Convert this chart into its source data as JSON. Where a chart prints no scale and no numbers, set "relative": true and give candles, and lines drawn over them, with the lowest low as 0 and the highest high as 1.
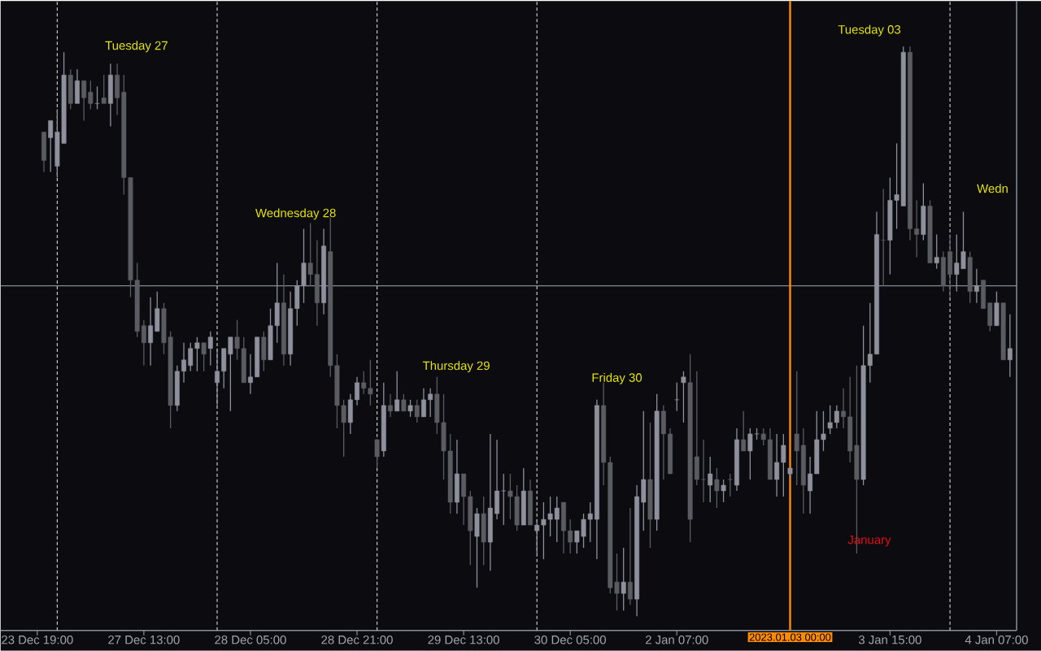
{
  "chart_data": {
    "type": "candlestick",
    "relative": true,
    "tick_labels": "x",
    "categories": [
      "23 Dec 19:00",
      null,
      null,
      null,
      null,
      null,
      null,
      null,
      null,
      null,
      null,
      null,
      null,
      null,
      null,
      null,
      "27 Dec 13:00",
      null,
      null,
      null,
      null,
      null,
      null,
      null,
      null,
      null,
      null,
      null,
      null,
      null,
      null,
      null,
      "28 Dec 05:00",
      null,
      null,
      null,
      null,
      null,
      null,
      null,
      null,
      null,
      null,
      null,
      null,
      null,
      null,
      null,
      "28 Dec 21:00",
      null,
      null,
      null,
      null,
      null,
      null,
      null,
      null,
      null,
      null,
      null,
      null,
      null,
      null,
      null,
      "29 Dec 13:00",
      null,
      null,
      null,
      null,
      null,
      null,
      null,
      null,
      null,
      null,
      null,
      null,
      null,
      null,
      null,
      "30 Dec 05:00",
      null,
      null,
      null,
      null,
      null,
      null,
      null,
      null,
      null,
      null,
      null,
      null,
      null,
      null,
      null,
      "2 Jan 07:00",
      null,
      null,
      null,
      null,
      null,
      null,
      null,
      null,
      null,
      null,
      null,
      null,
      null,
      null,
      null,
      null,
      null,
      null,
      null,
      null,
      null,
      null,
      null,
      null,
      null,
      null,
      null,
      null,
      null,
      null,
      null,
      "3 Jan 15:00",
      null,
      null,
      null,
      null,
      null,
      null,
      null,
      null,
      null,
      null,
      null,
      null,
      null,
      null,
      null,
      "4 Jan 07:00",
      null,
      null
    ],
    "ohlc": [
      null,
      [
        0.85,
        0.85,
        0.78,
        0.8
      ],
      [
        0.84,
        0.87,
        0.78,
        0.87
      ],
      [
        0.79,
        0.89,
        0.77,
        0.85
      ],
      [
        0.83,
        0.99,
        0.83,
        0.95
      ],
      [
        0.95,
        0.96,
        0.89,
        0.9
      ],
      [
        0.9,
        0.96,
        0.9,
        0.94
      ],
      [
        0.94,
        0.94,
        0.87,
        0.91
      ],
      [
        0.92,
        0.94,
        0.89,
        0.9
      ],
      [
        0.9,
        0.93,
        0.89,
        0.9
      ],
      [
        0.91,
        0.95,
        0.9,
        0.9
      ],
      [
        0.9,
        0.97,
        0.86,
        0.95
      ],
      [
        0.95,
        0.97,
        0.88,
        0.91
      ],
      [
        0.92,
        0.95,
        0.74,
        0.77
      ],
      [
        0.77,
        0.77,
        0.56,
        0.59
      ],
      [
        0.59,
        0.62,
        0.49,
        0.5
      ],
      [
        0.51,
        0.52,
        0.44,
        0.48
      ],
      [
        0.48,
        0.56,
        0.44,
        0.51
      ],
      [
        0.5,
        0.57,
        0.5,
        0.54
      ],
      [
        0.54,
        0.55,
        0.46,
        0.48
      ],
      [
        0.49,
        0.5,
        0.33,
        0.37
      ],
      [
        0.37,
        0.44,
        0.36,
        0.43
      ],
      [
        0.43,
        0.48,
        0.41,
        0.45
      ],
      [
        0.44,
        0.48,
        0.43,
        0.47
      ],
      [
        0.47,
        0.49,
        0.43,
        0.48
      ],
      [
        0.48,
        0.48,
        0.43,
        0.46
      ],
      [
        0.47,
        0.5,
        0.44,
        0.49
      ],
      [
        0.41,
        0.47,
        0.37,
        0.43
      ],
      [
        0.43,
        0.47,
        0.4,
        0.47
      ],
      [
        0.46,
        0.49,
        0.36,
        0.49
      ],
      [
        0.49,
        0.52,
        0.45,
        0.47
      ],
      [
        0.47,
        0.49,
        0.41,
        0.41
      ],
      [
        0.41,
        0.46,
        0.39,
        0.42
      ],
      [
        0.42,
        0.49,
        0.42,
        0.49
      ],
      [
        0.49,
        0.5,
        0.43,
        0.45
      ],
      [
        0.45,
        0.54,
        0.45,
        0.51
      ],
      [
        0.51,
        0.62,
        0.48,
        0.55
      ],
      [
        0.55,
        0.6,
        0.44,
        0.46
      ],
      [
        0.46,
        0.57,
        0.44,
        0.54
      ],
      [
        0.54,
        0.59,
        0.51,
        0.58
      ],
      [
        0.58,
        0.68,
        0.55,
        0.62
      ],
      [
        0.62,
        0.69,
        0.58,
        0.6
      ],
      [
        0.6,
        0.66,
        0.51,
        0.55
      ],
      [
        0.55,
        0.68,
        0.53,
        0.65
      ],
      [
        0.64,
        0.7,
        0.42,
        0.44
      ],
      [
        0.44,
        0.46,
        0.33,
        0.37
      ],
      [
        0.37,
        0.38,
        0.28,
        0.34
      ],
      [
        0.34,
        0.39,
        0.32,
        0.38
      ],
      [
        0.38,
        0.42,
        0.37,
        0.41
      ],
      [
        0.41,
        0.43,
        0.39,
        0.4
      ],
      [
        0.4,
        0.45,
        0.37,
        0.39
      ],
      [
        0.31,
        0.31,
        0.26,
        0.28
      ],
      [
        0.29,
        0.41,
        0.28,
        0.37
      ],
      [
        0.37,
        0.39,
        0.35,
        0.36
      ],
      [
        0.36,
        0.43,
        0.36,
        0.38
      ],
      [
        0.38,
        0.39,
        0.36,
        0.36
      ],
      [
        0.36,
        0.38,
        0.35,
        0.37
      ],
      [
        0.37,
        0.38,
        0.34,
        0.35
      ],
      [
        0.35,
        0.4,
        0.35,
        0.38
      ],
      [
        0.38,
        0.4,
        0.35,
        0.39
      ],
      [
        0.39,
        0.42,
        0.32,
        0.34
      ],
      [
        0.34,
        0.39,
        0.24,
        0.29
      ],
      [
        0.29,
        0.32,
        0.18,
        0.2
      ],
      [
        0.2,
        0.31,
        0.18,
        0.25
      ],
      [
        0.25,
        0.25,
        0.16,
        0.21
      ],
      [
        0.21,
        0.22,
        0.09,
        0.15
      ],
      [
        0.14,
        0.19,
        0.05,
        0.18
      ],
      [
        0.18,
        0.21,
        0.09,
        0.13
      ],
      [
        0.13,
        0.32,
        0.08,
        0.19
      ],
      [
        0.18,
        0.31,
        0.17,
        0.22
      ],
      [
        0.22,
        0.25,
        0.16,
        0.22
      ],
      [
        0.22,
        0.25,
        0.17,
        0.21
      ],
      [
        0.21,
        0.23,
        0.15,
        0.16
      ],
      [
        0.16,
        0.26,
        0.16,
        0.22
      ],
      [
        0.22,
        0.24,
        0.16,
        0.16
      ],
      [
        0.15,
        0.17,
        0.11,
        0.16
      ],
      [
        0.16,
        0.2,
        0.1,
        0.17
      ],
      [
        0.17,
        0.21,
        0.14,
        0.18
      ],
      [
        0.17,
        0.21,
        0.13,
        0.19
      ],
      [
        0.2,
        0.2,
        0.11,
        0.15
      ],
      [
        0.15,
        0.17,
        0.11,
        0.13
      ],
      [
        0.13,
        0.15,
        0.11,
        0.15
      ],
      [
        0.14,
        0.18,
        0.12,
        0.17
      ],
      [
        0.17,
        0.2,
        0.13,
        0.18
      ],
      [
        0.17,
        0.38,
        0.1,
        0.37
      ],
      [
        0.37,
        0.41,
        0.23,
        0.27
      ],
      [
        0.27,
        0.28,
        0.04,
        0.05
      ],
      [
        0.06,
        0.11,
        0.01,
        0.04
      ],
      [
        0.04,
        0.12,
        0.01,
        0.06
      ],
      [
        0.06,
        0.19,
        0.02,
        0.03
      ],
      [
        0.03,
        0.23,
        0,
        0.21
      ],
      [
        0.2,
        0.36,
        0.15,
        0.24
      ],
      [
        0.24,
        0.34,
        0.12,
        0.17
      ],
      [
        0.17,
        0.39,
        0.15,
        0.36
      ],
      [
        0.36,
        0.37,
        0.24,
        0.32
      ],
      [
        0.32,
        0.33,
        0.25,
        0.25
      ],
      [
        0.38,
        0.41,
        0.36,
        0.38
      ],
      [
        0.41,
        0.43,
        0.34,
        0.42
      ],
      [
        0.41,
        0.46,
        0.13,
        0.17
      ],
      [
        0.28,
        0.43,
        0.23,
        0.24
      ],
      [
        0.24,
        0.31,
        0.2,
        0.24
      ],
      [
        0.23,
        0.28,
        0.2,
        0.25
      ],
      [
        0.24,
        0.26,
        0.19,
        0.22
      ],
      [
        0.22,
        0.24,
        0.2,
        0.23
      ],
      [
        0.24,
        0.25,
        0.21,
        0.24
      ],
      [
        0.23,
        0.33,
        0.22,
        0.31
      ],
      [
        0.31,
        0.36,
        0.29,
        0.29
      ],
      [
        0.29,
        0.33,
        0.24,
        0.32
      ],
      [
        0.32,
        0.33,
        0.31,
        0.32
      ],
      [
        0.32,
        0.33,
        0.3,
        0.31
      ],
      [
        0.31,
        0.33,
        0.24,
        0.24
      ],
      [
        0.24,
        0.32,
        0.21,
        0.27
      ],
      [
        0.27,
        0.32,
        0.21,
        0.3
      ],
      [
        0.25,
        0.26,
        0.24,
        0.26
      ],
      [
        0.32,
        0.43,
        0.23,
        0.29
      ],
      [
        0.3,
        0.33,
        0.18,
        0.23
      ],
      [
        0.22,
        0.28,
        0.18,
        0.25
      ],
      [
        0.25,
        0.36,
        0.25,
        0.31
      ],
      [
        0.31,
        0.36,
        0.29,
        0.32
      ],
      [
        0.33,
        0.37,
        0.32,
        0.34
      ],
      [
        0.34,
        0.37,
        0.33,
        0.36
      ],
      [
        0.36,
        0.4,
        0.33,
        0.35
      ],
      [
        0.35,
        0.42,
        0.27,
        0.29
      ],
      [
        0.3,
        0.44,
        0.11,
        0.24
      ],
      [
        0.24,
        0.51,
        0.23,
        0.44
      ],
      [
        0.44,
        0.55,
        0.41,
        0.46
      ],
      [
        0.46,
        0.71,
        0.46,
        0.67
      ],
      [
        0.66,
        0.75,
        0.58,
        0.66
      ],
      [
        0.66,
        0.77,
        0.6,
        0.73
      ],
      [
        0.73,
        0.83,
        0.68,
        0.74
      ],
      [
        0.72,
        1,
        0.72,
        0.99
      ],
      [
        0.99,
        1,
        0.66,
        0.68
      ],
      [
        0.68,
        0.73,
        0.63,
        0.67
      ],
      [
        0.67,
        0.76,
        0.66,
        0.72
      ],
      [
        0.72,
        0.73,
        0.62,
        0.62
      ],
      [
        0.62,
        0.67,
        0.61,
        0.63
      ],
      [
        0.63,
        0.64,
        0.57,
        0.58
      ],
      [
        0.64,
        0.67,
        0.56,
        0.6
      ],
      [
        0.6,
        0.67,
        0.57,
        0.62
      ],
      [
        0.61,
        0.71,
        0.61,
        0.64
      ],
      [
        0.63,
        0.64,
        0.55,
        0.57
      ],
      [
        0.57,
        0.61,
        0.55,
        0.58
      ],
      [
        0.59,
        0.59,
        0.54,
        0.54
      ],
      [
        0.55,
        0.55,
        0.5,
        0.51
      ],
      [
        0.51,
        0.57,
        0.51,
        0.55
      ],
      [
        0.55,
        0.55,
        0.45,
        0.45
      ],
      [
        0.45,
        0.53,
        0.42,
        0.47
      ]
    ],
    "colors": [
      null,
      "#5b5c62",
      "#8e909c",
      "#8e909c",
      "#8e909c",
      "#5b5c62",
      "#8e909c",
      "#5b5c62",
      "#5b5c62",
      "#8e909c",
      "#5b5c62",
      "#8e909c",
      "#5b5c62",
      "#5b5c62",
      "#5b5c62",
      "#5b5c62",
      "#5b5c62",
      "#8e909c",
      "#8e909c",
      "#5b5c62",
      "#5b5c62",
      "#8e909c",
      "#8e909c",
      "#8e909c",
      "#8e909c",
      "#5b5c62",
      "#8e909c",
      "#8e909c",
      "#8e909c",
      "#8e909c",
      "#5b5c62",
      "#5b5c62",
      "#8e909c",
      "#8e909c",
      "#5b5c62",
      "#8e909c",
      "#8e909c",
      "#5b5c62",
      "#8e909c",
      "#8e909c",
      "#8e909c",
      "#5b5c62",
      "#5b5c62",
      "#8e909c",
      "#5b5c62",
      "#5b5c62",
      "#5b5c62",
      "#8e909c",
      "#8e909c",
      "#5b5c62",
      "#5b5c62",
      "#5b5c62",
      "#8e909c",
      "#5b5c62",
      "#8e909c",
      "#5b5c62",
      "#8e909c",
      "#5b5c62",
      "#8e909c",
      "#8e909c",
      "#5b5c62",
      "#5b5c62",
      "#5b5c62",
      "#8e909c",
      "#5b5c62",
      "#5b5c62",
      "#8e909c",
      "#5b5c62",
      "#8e909c",
      "#8e909c",
      "#8e909c",
      "#5b5c62",
      "#5b5c62",
      "#8e909c",
      "#5b5c62",
      "#8e909c",
      "#8e909c",
      "#8e909c",
      "#8e909c",
      "#5b5c62",
      "#5b5c62",
      "#8e909c",
      "#8e909c",
      "#8e909c",
      "#8e909c",
      "#5b5c62",
      "#5b5c62",
      "#5b5c62",
      "#8e909c",
      "#5b5c62",
      "#8e909c",
      "#8e909c",
      "#5b5c62",
      "#8e909c",
      "#5b5c62",
      "#5b5c62",
      "#8e909c",
      "#8e909c",
      "#5b5c62",
      "#5b5c62",
      "#5b5c62",
      "#8e909c",
      "#5b5c62",
      "#8e909c",
      "#5b5c62",
      "#8e909c",
      "#5b5c62",
      "#8e909c",
      "#8e909c",
      "#5b5c62",
      "#5b5c62",
      "#8e909c",
      "#8e909c",
      "#8e909c",
      "#5b5c62",
      "#5b5c62",
      "#8e909c",
      "#8e909c",
      "#8e909c",
      "#8e909c",
      "#8e909c",
      "#5b5c62",
      "#5b5c62",
      "#5b5c62",
      "#8e909c",
      "#8e909c",
      "#8e909c",
      "#5b5c62",
      "#8e909c",
      "#8e909c",
      "#8e909c",
      "#5b5c62",
      "#5b5c62",
      "#8e909c",
      "#5b5c62",
      "#8e909c",
      "#5b5c62",
      "#5b5c62",
      "#8e909c",
      "#8e909c",
      "#5b5c62",
      "#8e909c",
      "#5b5c62",
      "#5b5c62",
      "#8e909c",
      "#5b5c62",
      "#8e909c"
    ],
    "ref_lines": [
      {
        "axis": "y",
        "value": 0.58,
        "color": "#7f8a96",
        "line_style": "solid"
      }
    ],
    "annotations": [
      "Tuesday 27",
      "Wednesday 28",
      "Thursday 29",
      "Friday 30",
      "Tuesday 03",
      "Wedn",
      "January",
      "2023.01.03 00:00"
    ]
  }
}
